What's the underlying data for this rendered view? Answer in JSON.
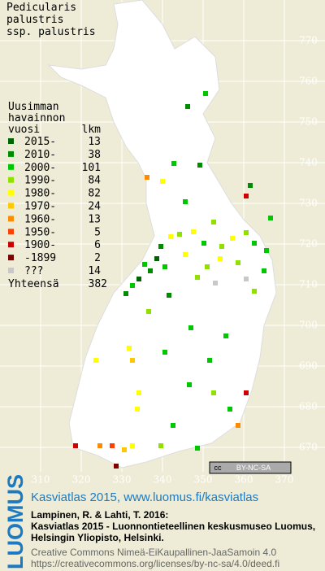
{
  "title": [
    "Pedicularis",
    "palustris",
    "ssp. palustris"
  ],
  "legend": {
    "header": [
      "Uusimman",
      "havainnon",
      "vuosi"
    ],
    "count_header": "lkm",
    "rows": [
      {
        "label": "2015-",
        "count": 13,
        "color": "#006400"
      },
      {
        "label": "2010-",
        "count": 38,
        "color": "#008c00"
      },
      {
        "label": "2000-",
        "count": 101,
        "color": "#00c800"
      },
      {
        "label": "1990-",
        "count": 84,
        "color": "#90e000"
      },
      {
        "label": "1980-",
        "count": 82,
        "color": "#ffff00"
      },
      {
        "label": "1970-",
        "count": 24,
        "color": "#ffc800"
      },
      {
        "label": "1960-",
        "count": 13,
        "color": "#ff8c00"
      },
      {
        "label": "1950-",
        "count": 5,
        "color": "#ff4000"
      },
      {
        "label": "1900-",
        "count": 6,
        "color": "#d00000"
      },
      {
        "label": "-1899",
        "count": 2,
        "color": "#800000"
      },
      {
        "label": "???",
        "count": 14,
        "color": "#c8c8c8"
      }
    ],
    "total_label": "Yhteensä",
    "total": 382
  },
  "grid": {
    "north": [
      770,
      760,
      750,
      740,
      730,
      720,
      710,
      700,
      690,
      680,
      670
    ],
    "east": [
      310,
      320,
      330,
      340,
      350,
      360,
      370
    ]
  },
  "badge": [
    "cc",
    "BY-NC-SA"
  ],
  "footer": {
    "logo": "LUOMUS",
    "link": "Kasviatlas 2015, www.luomus.fi/kasviatlas",
    "citation": [
      "Lampinen, R. & Lahti, T. 2016:",
      "Kasviatlas 2015 - Luonnontieteellinen keskusmuseo Luomus,",
      "Helsingin Yliopisto, Helsinki."
    ],
    "license": [
      "Creative Commons Nimeä-EiKaupallinen-JaaSamoin 4.0",
      "https://creativecommons.org/licenses/by-nc-sa/4.0/deed.fi"
    ]
  }
}
